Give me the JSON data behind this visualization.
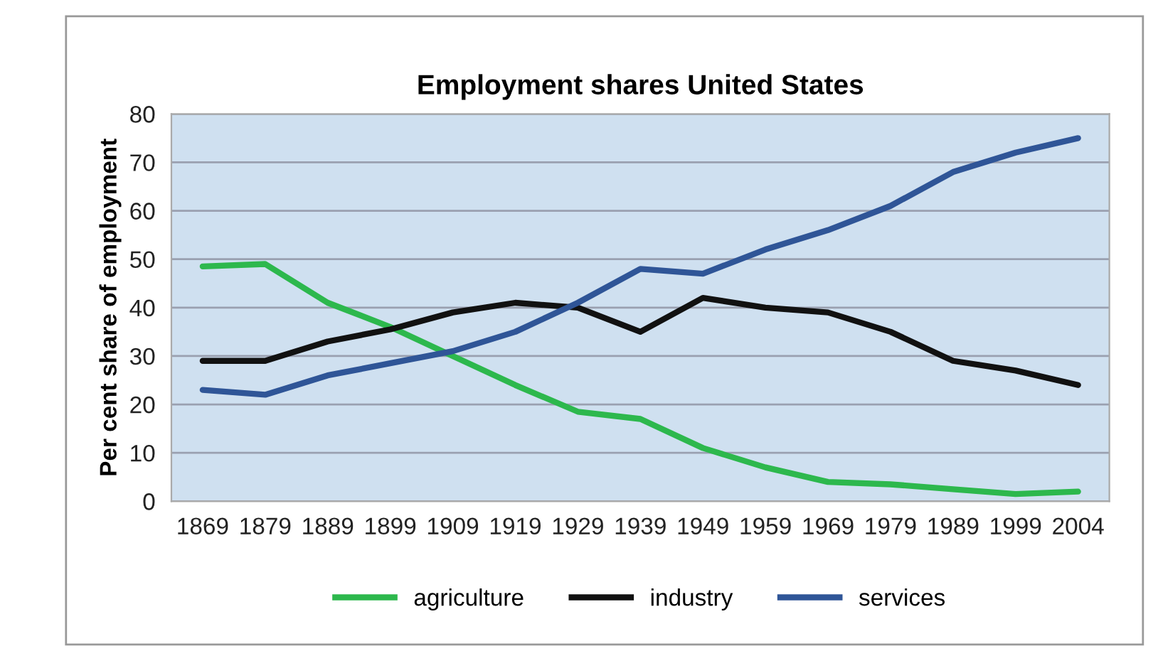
{
  "chart_data": {
    "type": "line",
    "title": "Employment shares United States",
    "ylabel": "Per cent share of employment",
    "categories": [
      "1869",
      "1879",
      "1889",
      "1899",
      "1909",
      "1919",
      "1929",
      "1939",
      "1949",
      "1959",
      "1969",
      "1979",
      "1989",
      "1999",
      "2004"
    ],
    "series": [
      {
        "name": "agriculture",
        "color": "#2db84d",
        "values": [
          48.5,
          49,
          41,
          36,
          30,
          24,
          18.5,
          17,
          11,
          7,
          4,
          3.5,
          2.5,
          1.5,
          2
        ]
      },
      {
        "name": "industry",
        "color": "#111111",
        "values": [
          29,
          29,
          33,
          35.5,
          39,
          41,
          40,
          35,
          42,
          40,
          39,
          35,
          29,
          27,
          24
        ]
      },
      {
        "name": "services",
        "color": "#2f5597",
        "values": [
          23,
          22,
          26,
          28.5,
          31,
          35,
          41,
          48,
          47,
          52,
          56,
          61,
          68,
          72,
          75
        ]
      }
    ],
    "ylim": [
      0,
      80
    ],
    "yticks": [
      0,
      10,
      20,
      30,
      40,
      50,
      60,
      70,
      80
    ],
    "grid": "y",
    "legend": "bottom",
    "marker": "none",
    "line_style": "solid"
  }
}
